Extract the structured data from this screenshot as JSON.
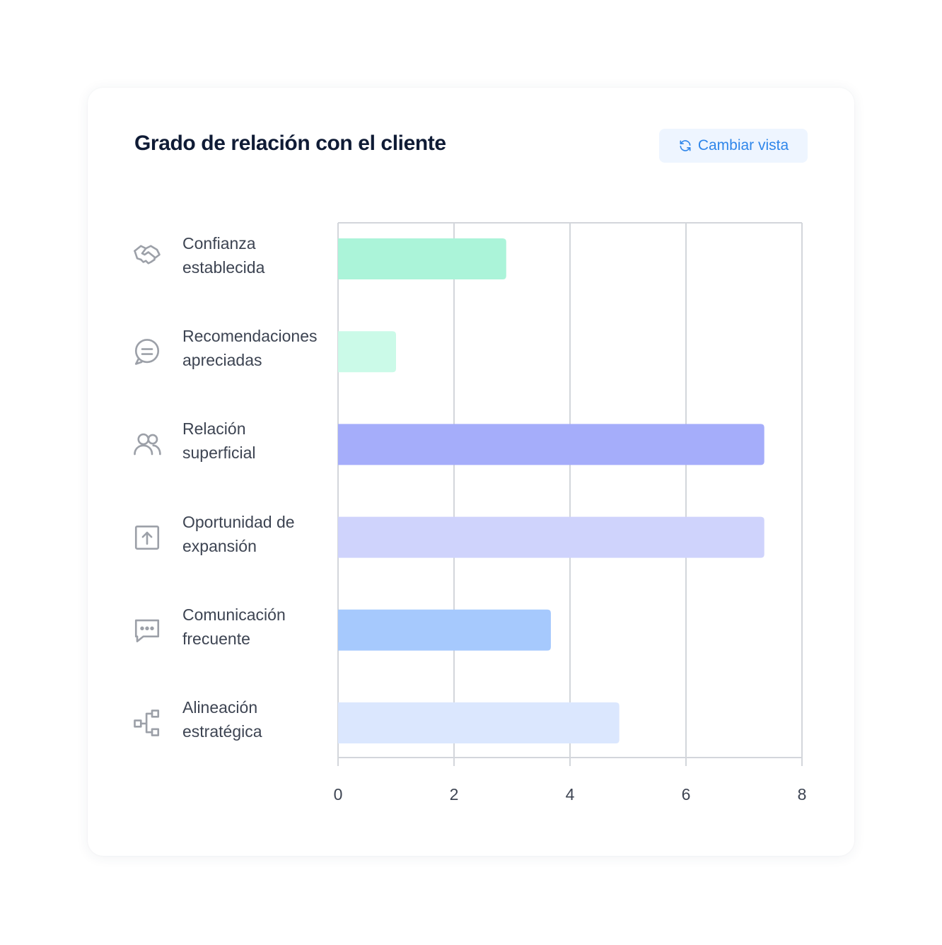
{
  "header": {
    "title": "Grado de relación con el cliente",
    "view_button_label": "Cambiar vista",
    "view_button_icon": "refresh-icon",
    "accent_color": "#2f86ea"
  },
  "chart_data": {
    "type": "bar",
    "orientation": "horizontal",
    "categories": [
      {
        "lines": [
          "Confianza",
          "establecida"
        ],
        "icon": "handshake-icon"
      },
      {
        "lines": [
          "Recomendaciones",
          "apreciadas"
        ],
        "icon": "chat-bubble-icon"
      },
      {
        "lines": [
          "Relación",
          "superficial"
        ],
        "icon": "users-icon"
      },
      {
        "lines": [
          "Oportunidad de",
          "expansión"
        ],
        "icon": "upload-icon"
      },
      {
        "lines": [
          "Comunicación",
          "frecuente"
        ],
        "icon": "message-dots-icon"
      },
      {
        "lines": [
          "Alineación",
          "estratégica"
        ],
        "icon": "hierarchy-icon"
      }
    ],
    "values": [
      2.9,
      1.0,
      7.35,
      7.35,
      3.67,
      4.85
    ],
    "colors": [
      "#abf4d9",
      "#cbfae8",
      "#a5adfa",
      "#cfd3fc",
      "#a6c9fd",
      "#dbe7fe"
    ],
    "xlim": [
      0,
      8
    ],
    "xticks": [
      "0",
      "2",
      "4",
      "6",
      "8"
    ],
    "grid": true,
    "legend": "none"
  }
}
